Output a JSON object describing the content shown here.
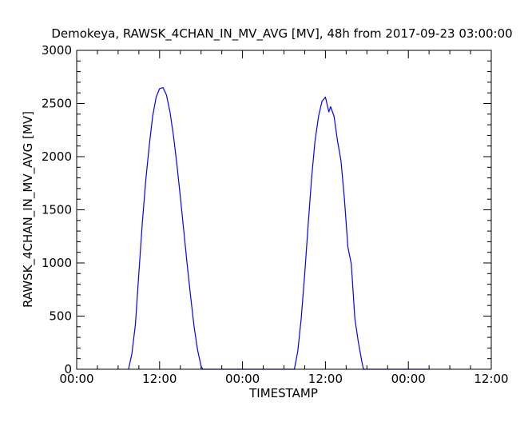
{
  "chart_data": {
    "type": "line",
    "title": "Demokeya, RAWSK_4CHAN_IN_MV_AVG [MV], 48h from  2017-09-23 03:00:00",
    "xlabel": "TIMESTAMP",
    "ylabel": "RAWSK_4CHAN_IN_MV_AVG [MV]",
    "xlim": [
      "2017-09-23 00:00",
      "2017-09-25 12:00"
    ],
    "ylim": [
      0,
      3000
    ],
    "x_ticks": [
      "00:00",
      "12:00",
      "00:00",
      "12:00",
      "00:00",
      "12:00"
    ],
    "y_ticks": [
      "0",
      "500",
      "1000",
      "1500",
      "2000",
      "2500",
      "3000"
    ],
    "grid": false,
    "legend": false,
    "colors": {
      "line": "#0000ff",
      "axes": "#000000"
    },
    "series": [
      {
        "x": [
          "2017-09-23 07:30",
          "2017-09-23 08:00",
          "2017-09-23 08:30",
          "2017-09-23 09:00",
          "2017-09-23 09:30",
          "2017-09-23 10:00",
          "2017-09-23 10:30",
          "2017-09-23 11:00",
          "2017-09-23 11:30",
          "2017-09-23 12:00",
          "2017-09-23 12:30",
          "2017-09-23 13:00",
          "2017-09-23 13:30",
          "2017-09-23 14:00",
          "2017-09-23 14:30",
          "2017-09-23 15:00",
          "2017-09-23 15:30",
          "2017-09-23 16:00",
          "2017-09-23 16:30",
          "2017-09-23 17:00",
          "2017-09-23 17:30",
          "2017-09-23 18:00",
          "2017-09-23 18:15",
          "2017-09-23 21:00",
          "2017-09-24 00:00",
          "2017-09-24 03:00",
          "2017-09-24 06:00",
          "2017-09-24 07:30",
          "2017-09-24 08:00",
          "2017-09-24 08:30",
          "2017-09-24 09:00",
          "2017-09-24 09:30",
          "2017-09-24 10:00",
          "2017-09-24 10:30",
          "2017-09-24 11:00",
          "2017-09-24 11:30",
          "2017-09-24 12:00",
          "2017-09-24 12:30",
          "2017-09-24 12:45",
          "2017-09-24 13:15",
          "2017-09-24 13:45",
          "2017-09-24 14:15",
          "2017-09-24 14:45",
          "2017-09-24 15:15",
          "2017-09-24 15:45",
          "2017-09-24 16:15",
          "2017-09-24 16:45",
          "2017-09-24 17:15",
          "2017-09-24 17:30",
          "2017-09-24 18:00",
          "2017-09-24 21:00",
          "2017-09-25 00:00",
          "2017-09-25 03:00"
        ],
        "y": [
          0,
          150,
          420,
          900,
          1380,
          1780,
          2100,
          2380,
          2560,
          2640,
          2650,
          2580,
          2420,
          2200,
          1930,
          1620,
          1300,
          980,
          680,
          400,
          180,
          30,
          0,
          0,
          0,
          0,
          0,
          0,
          170,
          480,
          900,
          1360,
          1800,
          2150,
          2380,
          2520,
          2560,
          2420,
          2470,
          2380,
          2150,
          1960,
          1600,
          1150,
          990,
          480,
          260,
          80,
          0,
          0,
          0,
          0,
          0
        ]
      }
    ]
  }
}
